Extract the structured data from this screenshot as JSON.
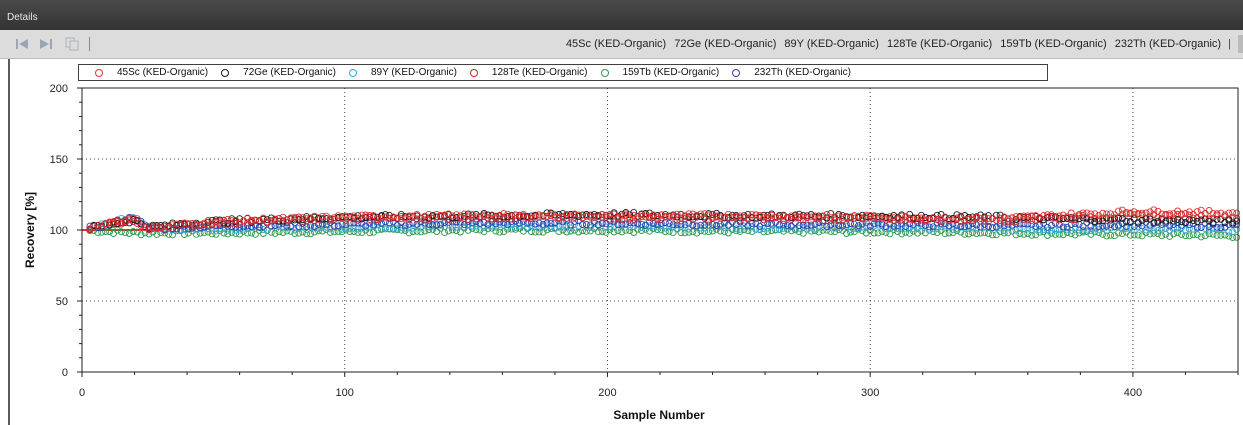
{
  "window": {
    "title": "Details"
  },
  "toolbar": {
    "icons": [
      "first-page-icon",
      "last-page-icon",
      "copy-icon"
    ],
    "series_labels": [
      "45Sc (KED-Organic)",
      "72Ge (KED-Organic)",
      "89Y (KED-Organic)",
      "128Te (KED-Organic)",
      "159Tb (KED-Organic)",
      "232Th (KED-Organic)"
    ],
    "trailing_pipe": "|"
  },
  "chart_data": {
    "type": "scatter",
    "title": "",
    "xlabel": "Sample Number",
    "ylabel": "Recovery [%]",
    "xlim": [
      0,
      440
    ],
    "ylim": [
      0,
      200
    ],
    "xticks": [
      0,
      100,
      200,
      300,
      400
    ],
    "yticks": [
      0,
      50,
      100,
      150,
      200
    ],
    "grid": true,
    "grid_style": "dotted",
    "reference_line": {
      "y": 100,
      "color": "#e03030"
    },
    "legend_position": "top",
    "series": [
      {
        "name": "45Sc (KED-Organic)",
        "color": "#e03030",
        "x": [
          0,
          10,
          20,
          25,
          50,
          100,
          150,
          200,
          250,
          300,
          350,
          400,
          440
        ],
        "y": [
          100,
          105,
          108,
          101,
          106,
          109,
          110,
          110,
          110,
          109,
          108,
          113,
          112
        ]
      },
      {
        "name": "72Ge (KED-Organic)",
        "color": "#1a1a1a",
        "x": [
          0,
          10,
          20,
          25,
          50,
          100,
          150,
          200,
          250,
          300,
          350,
          400,
          440
        ],
        "y": [
          100,
          104,
          107,
          102,
          106,
          109,
          110,
          111,
          110,
          110,
          109,
          107,
          106
        ]
      },
      {
        "name": "89Y (KED-Organic)",
        "color": "#30a8d8",
        "x": [
          0,
          10,
          20,
          25,
          50,
          100,
          150,
          200,
          250,
          300,
          350,
          400,
          440
        ],
        "y": [
          100,
          104,
          110,
          101,
          101,
          102,
          103,
          103,
          102,
          102,
          101,
          101,
          100
        ]
      },
      {
        "name": "128Te (KED-Organic)",
        "color": "#c02828",
        "x": [
          0,
          10,
          20,
          25,
          50,
          100,
          150,
          200,
          250,
          300,
          350,
          400,
          440
        ],
        "y": [
          100,
          104,
          107,
          101,
          105,
          108,
          109,
          109,
          108,
          108,
          107,
          110,
          109
        ]
      },
      {
        "name": "159Tb (KED-Organic)",
        "color": "#2a9a48",
        "x": [
          0,
          10,
          20,
          25,
          50,
          100,
          150,
          200,
          250,
          300,
          350,
          400,
          440
        ],
        "y": [
          100,
          99,
          98,
          98,
          98,
          99,
          100,
          100,
          99,
          99,
          98,
          97,
          96
        ]
      },
      {
        "name": "232Th (KED-Organic)",
        "color": "#3040b0",
        "x": [
          0,
          10,
          20,
          25,
          50,
          100,
          150,
          200,
          250,
          300,
          350,
          400,
          440
        ],
        "y": [
          100,
          104,
          109,
          101,
          103,
          104,
          105,
          105,
          104,
          104,
          103,
          104,
          103
        ]
      }
    ]
  }
}
